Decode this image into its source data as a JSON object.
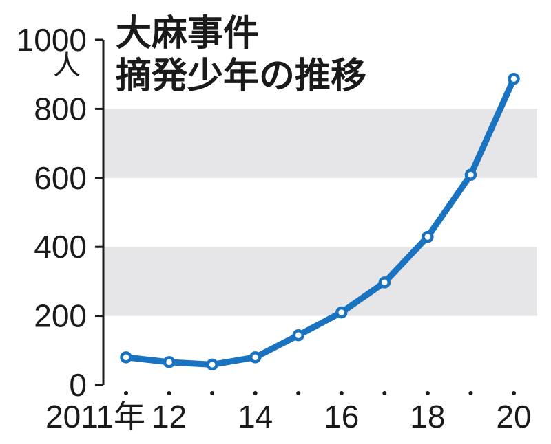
{
  "chart_data": {
    "type": "line",
    "title_lines": [
      "大麻事件",
      "摘発少年の推移"
    ],
    "y_unit": "人",
    "ylim": [
      0,
      1000
    ],
    "y_ticks": [
      {
        "value": 0,
        "label": "0"
      },
      {
        "value": 200,
        "label": "200"
      },
      {
        "value": 400,
        "label": "400"
      },
      {
        "value": 600,
        "label": "600"
      },
      {
        "value": 800,
        "label": "800"
      },
      {
        "value": 1000,
        "label": "1000"
      }
    ],
    "shaded_bands": [
      [
        200,
        400
      ],
      [
        600,
        800
      ]
    ],
    "x": [
      2011,
      2012,
      2013,
      2014,
      2015,
      2016,
      2017,
      2018,
      2019,
      2020
    ],
    "x_tick_labels": [
      {
        "year": 2011,
        "label": "2011年"
      },
      {
        "year": 2012,
        "label": "12"
      },
      {
        "year": 2014,
        "label": "14"
      },
      {
        "year": 2016,
        "label": "16"
      },
      {
        "year": 2018,
        "label": "18"
      },
      {
        "year": 2020,
        "label": "20"
      }
    ],
    "series": [
      {
        "values": [
          80,
          66,
          59,
          80,
          144,
          210,
          297,
          429,
          609,
          887
        ]
      }
    ],
    "colors": {
      "line": "#1a73c0",
      "marker_fill": "#ffffff",
      "band": "#e6e6e8",
      "axis": "#1a1a1a"
    }
  }
}
